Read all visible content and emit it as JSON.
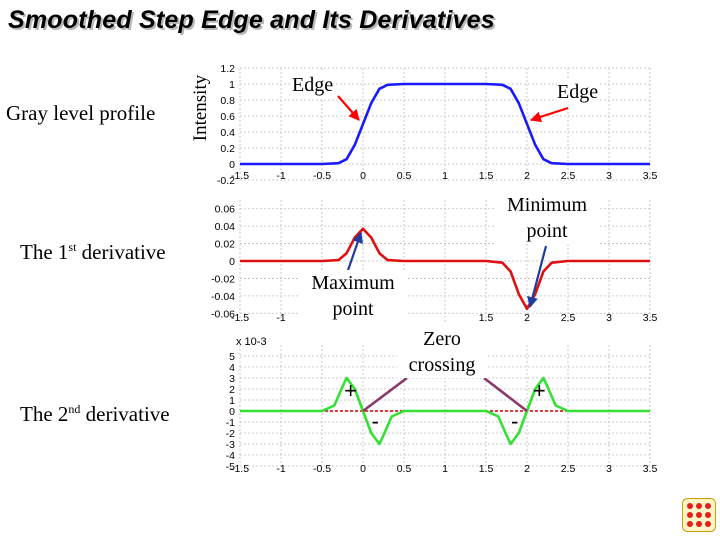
{
  "title": "Smoothed Step Edge and Its Derivatives",
  "row_labels": {
    "profile": "Gray level profile",
    "first_prefix": "The 1",
    "first_sup": "st",
    "first_suffix": " derivative",
    "second_prefix": "The 2",
    "second_sup": "nd",
    "second_suffix": " derivative"
  },
  "ylabel": "Intensity",
  "annotations": {
    "edge_left": "Edge",
    "edge_right": "Edge",
    "minimum_line1": "Minimum",
    "minimum_line2": "point",
    "maximum_line1": "Maximum",
    "maximum_line2": "point",
    "zero_line1": "Zero",
    "zero_line2": "crossing",
    "plus": "+",
    "minus": "-"
  },
  "colors": {
    "profile": "#1a1aff",
    "first_derivative": "#e01010",
    "second_derivative": "#33e033",
    "zero_line": "#cc0000",
    "arrow_red": "#ff0000",
    "arrow_blue": "#1f3c9e",
    "connector": "#8a3a6a"
  },
  "chart_data": [
    {
      "id": "profile",
      "type": "line",
      "xlim": [
        -1.5,
        3.5
      ],
      "ylim": [
        -0.2,
        1.2
      ],
      "x_ticks": [
        -1.5,
        -1,
        -0.5,
        0,
        0.5,
        1,
        1.5,
        2,
        2.5,
        3,
        3.5
      ],
      "x_tick_labels": [
        "-1.5",
        "-1",
        "-0.5",
        "0",
        "0.5",
        "1",
        "1.5",
        "2",
        "2.5",
        "3",
        "3.5"
      ],
      "y_ticks": [
        -0.2,
        0,
        0.2,
        0.4,
        0.6,
        0.8,
        1,
        1.2
      ],
      "y_tick_labels": [
        "-0.2",
        "0",
        "0.2",
        "0.4",
        "0.6",
        "0.8",
        "1",
        "1.2"
      ],
      "grid": true,
      "series": [
        {
          "x": [
            -1.5,
            -0.5,
            -0.3,
            -0.2,
            -0.1,
            0,
            0.1,
            0.2,
            0.3,
            0.5,
            1.5,
            1.7,
            1.8,
            1.9,
            2,
            2.1,
            2.2,
            2.3,
            2.5,
            3.5
          ],
          "y": [
            0,
            0,
            0.01,
            0.06,
            0.24,
            0.5,
            0.76,
            0.94,
            0.99,
            1,
            1,
            0.99,
            0.94,
            0.76,
            0.5,
            0.24,
            0.06,
            0.01,
            0,
            0
          ]
        }
      ]
    },
    {
      "id": "first_derivative",
      "type": "line",
      "xlim": [
        -1.5,
        3.5
      ],
      "ylim": [
        -0.07,
        0.07
      ],
      "x_ticks": [
        -1.5,
        -1,
        1.5,
        2,
        2.5,
        3,
        3.5
      ],
      "x_tick_labels": [
        "-1.5",
        "-1",
        "1.5",
        "2",
        "2.5",
        "3",
        "3.5"
      ],
      "y_ticks": [
        -0.06,
        -0.04,
        -0.02,
        0,
        0.02,
        0.04,
        0.06
      ],
      "y_tick_labels": [
        "-0.06",
        "-0.04",
        "-0.02",
        "0",
        "0.02",
        "0.04",
        "0.06"
      ],
      "grid": true,
      "series": [
        {
          "x": [
            -1.5,
            -0.5,
            -0.3,
            -0.2,
            -0.1,
            0,
            0.1,
            0.2,
            0.3,
            0.5,
            1.5,
            1.7,
            1.8,
            1.9,
            2,
            2.1,
            2.2,
            2.3,
            2.5,
            3.5
          ],
          "y": [
            0,
            0,
            0.001,
            0.009,
            0.027,
            0.037,
            0.027,
            0.009,
            0.001,
            0,
            0,
            -0.002,
            -0.012,
            -0.038,
            -0.055,
            -0.038,
            -0.012,
            -0.002,
            0,
            0
          ]
        }
      ]
    },
    {
      "id": "second_derivative",
      "type": "line",
      "xlim": [
        -1.5,
        3.5
      ],
      "ylim": [
        -5,
        6
      ],
      "multiplier": "x 10-3",
      "x_ticks": [
        -1.5,
        -1,
        -0.5,
        0,
        0.5,
        1,
        1.5,
        2,
        2.5,
        3,
        3.5
      ],
      "x_tick_labels": [
        "-1.5",
        "-1",
        "-0.5",
        "0",
        "0.5",
        "1",
        "1.5",
        "2",
        "2.5",
        "3",
        "3.5"
      ],
      "y_ticks": [
        -5,
        -4,
        -3,
        -2,
        -1,
        0,
        1,
        2,
        3,
        4,
        5
      ],
      "y_tick_labels": [
        "-5",
        "-4",
        "-3",
        "-2",
        "-1",
        "0",
        "1",
        "2",
        "3",
        "4",
        "5"
      ],
      "grid": true,
      "series": [
        {
          "x": [
            -1.5,
            -0.5,
            -0.35,
            -0.25,
            -0.2,
            -0.1,
            0,
            0.1,
            0.2,
            0.25,
            0.35,
            0.5,
            1.5,
            1.65,
            1.75,
            1.8,
            1.9,
            2,
            2.1,
            2.2,
            2.25,
            2.35,
            2.5,
            3.5
          ],
          "y": [
            0,
            0,
            0.5,
            2.2,
            3.0,
            2.0,
            0,
            -2.0,
            -3.0,
            -2.2,
            -0.5,
            0,
            0,
            -0.5,
            -2.2,
            -3.0,
            -2.0,
            0,
            2.0,
            3.0,
            2.2,
            0.5,
            0,
            0
          ]
        }
      ]
    }
  ]
}
